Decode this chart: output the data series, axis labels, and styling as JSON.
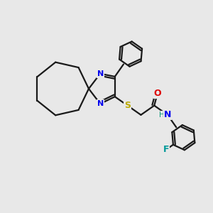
{
  "bg_color": "#e8e8e8",
  "bond_color": "#1a1a1a",
  "N_color": "#0000ee",
  "S_color": "#bbaa00",
  "O_color": "#dd0000",
  "F_color": "#009999",
  "H_color": "#009977",
  "figsize": [
    3.0,
    3.0
  ],
  "dpi": 100,
  "xlim": [
    0,
    10
  ],
  "ylim": [
    0,
    10
  ]
}
